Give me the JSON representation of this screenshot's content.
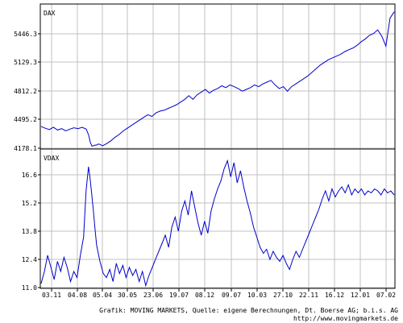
{
  "credits": {
    "line1": "Grafik: MOVING MARKETS, Quelle: eigene Berechnungen, Dt. Boerse AG; b.i.s. AG",
    "line2": "http://www.movingmarkets.de"
  },
  "colors": {
    "series": "#0000cc",
    "grid": "#c0c0c0",
    "axis": "#000000"
  },
  "chart_data": [
    {
      "type": "line",
      "title": "DAX",
      "x_ticks": [
        "03.11",
        "04.08",
        "05.04",
        "30.05",
        "23.06",
        "19.07",
        "08.12",
        "09.07",
        "10.03",
        "27.10",
        "22.11",
        "16.12",
        "12.01",
        "07.02"
      ],
      "y_ticks": [
        "5446.3",
        "5129.3",
        "4812.2",
        "4495.2",
        "4178.1"
      ],
      "ylim": [
        4178.1,
        5700
      ],
      "grid": true,
      "series": [
        {
          "x": [
            0,
            5,
            10,
            15,
            20,
            25,
            30,
            35,
            40,
            45,
            50,
            55,
            58,
            60,
            62,
            65,
            68,
            70,
            75,
            80,
            85,
            90,
            95,
            100,
            105,
            110,
            115,
            120,
            125,
            130,
            135,
            140,
            145,
            150,
            155,
            160,
            165,
            170,
            175,
            180,
            185,
            190,
            195,
            200,
            205,
            210,
            215,
            220,
            225,
            230,
            235,
            240,
            245,
            250,
            255,
            260,
            265,
            270,
            275,
            280,
            285,
            290,
            295,
            300,
            305,
            310,
            315,
            320,
            325,
            330,
            335,
            340,
            345,
            350,
            355,
            360,
            365,
            370,
            375,
            380,
            385,
            390,
            395,
            400,
            405,
            410,
            415,
            420,
            425,
            430
          ],
          "values": [
            4420,
            4400,
            4385,
            4410,
            4380,
            4395,
            4370,
            4390,
            4405,
            4395,
            4410,
            4390,
            4320,
            4240,
            4200,
            4210,
            4215,
            4225,
            4205,
            4230,
            4260,
            4300,
            4330,
            4370,
            4400,
            4430,
            4460,
            4490,
            4520,
            4550,
            4530,
            4570,
            4590,
            4600,
            4620,
            4640,
            4660,
            4690,
            4720,
            4760,
            4720,
            4770,
            4800,
            4830,
            4790,
            4820,
            4840,
            4870,
            4850,
            4880,
            4860,
            4840,
            4810,
            4830,
            4850,
            4880,
            4860,
            4890,
            4910,
            4930,
            4880,
            4840,
            4860,
            4810,
            4860,
            4890,
            4920,
            4950,
            4980,
            5020,
            5060,
            5100,
            5130,
            5160,
            5180,
            5200,
            5220,
            5250,
            5270,
            5290,
            5320,
            5360,
            5390,
            5430,
            5450,
            5490,
            5420,
            5310,
            5620,
            5690
          ]
        }
      ]
    },
    {
      "type": "line",
      "title": "VDAX",
      "x_ticks": [
        "03.11",
        "04.08",
        "05.04",
        "30.05",
        "23.06",
        "19.07",
        "08.12",
        "09.07",
        "10.03",
        "27.10",
        "22.11",
        "16.12",
        "12.01",
        "07.02"
      ],
      "y_ticks": [
        "16.6",
        "15.2",
        "13.8",
        "12.4",
        "11.0"
      ],
      "ylim": [
        11.0,
        17.6
      ],
      "grid": true,
      "series": [
        {
          "x": [
            0,
            4,
            8,
            12,
            16,
            20,
            24,
            28,
            32,
            36,
            40,
            44,
            48,
            52,
            55,
            58,
            60,
            62,
            64,
            66,
            68,
            72,
            76,
            80,
            84,
            88,
            92,
            96,
            100,
            104,
            108,
            112,
            116,
            120,
            124,
            128,
            132,
            136,
            140,
            144,
            148,
            152,
            156,
            160,
            164,
            168,
            172,
            176,
            180,
            184,
            188,
            192,
            196,
            200,
            204,
            208,
            212,
            216,
            220,
            224,
            228,
            232,
            236,
            240,
            244,
            248,
            252,
            256,
            260,
            264,
            268,
            272,
            276,
            280,
            284,
            288,
            292,
            296,
            300,
            304,
            308,
            312,
            316,
            320,
            324,
            328,
            332,
            336,
            340,
            344,
            348,
            352,
            356,
            360,
            364,
            368,
            372,
            376,
            380,
            384,
            388,
            392,
            396,
            400,
            404,
            408,
            412,
            416,
            420,
            424,
            428,
            432
          ],
          "values": [
            11.2,
            11.8,
            12.6,
            12.0,
            11.4,
            12.3,
            11.8,
            12.5,
            12.0,
            11.3,
            11.8,
            11.5,
            12.6,
            13.5,
            15.8,
            17.0,
            16.4,
            15.6,
            14.8,
            13.9,
            13.1,
            12.3,
            11.7,
            11.5,
            11.9,
            11.3,
            12.2,
            11.7,
            12.1,
            11.5,
            12.0,
            11.6,
            11.9,
            11.3,
            11.8,
            11.1,
            11.6,
            12.0,
            12.4,
            12.8,
            13.2,
            13.6,
            13.0,
            14.0,
            14.5,
            13.8,
            14.8,
            15.3,
            14.6,
            15.8,
            15.0,
            14.2,
            13.6,
            14.3,
            13.7,
            14.8,
            15.4,
            15.9,
            16.3,
            16.9,
            17.3,
            16.5,
            17.2,
            16.2,
            16.8,
            16.0,
            15.3,
            14.7,
            14.0,
            13.5,
            13.0,
            12.7,
            12.9,
            12.4,
            12.8,
            12.5,
            12.3,
            12.6,
            12.2,
            11.9,
            12.4,
            12.8,
            12.5,
            12.9,
            13.3,
            13.7,
            14.1,
            14.5,
            14.9,
            15.4,
            15.8,
            15.3,
            15.9,
            15.5,
            15.8,
            16.0,
            15.7,
            16.1,
            15.6,
            15.9,
            15.7,
            15.9,
            15.6,
            15.8,
            15.7,
            15.9,
            15.8,
            15.6,
            15.9,
            15.7,
            15.8,
            15.6
          ]
        }
      ]
    }
  ]
}
